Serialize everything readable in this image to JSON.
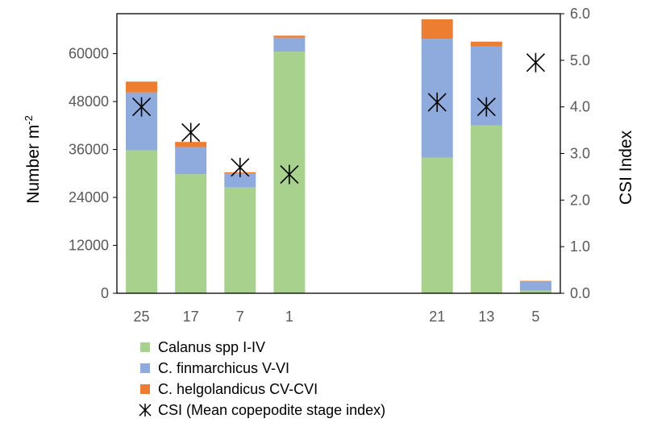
{
  "chart_data": {
    "type": "bar",
    "stacked": true,
    "categories": [
      "25",
      "17",
      "7",
      "1",
      "",
      "",
      "21",
      "13",
      "5"
    ],
    "series": [
      {
        "name": "Calanus spp I-IV",
        "color": "#a9d18e",
        "values": [
          35800,
          29800,
          26500,
          60500,
          null,
          null,
          34000,
          42000,
          700
        ]
      },
      {
        "name": "C. finmarchicus V-VI",
        "color": "#8faadc",
        "values": [
          14500,
          6800,
          3500,
          3500,
          null,
          null,
          29700,
          19800,
          2200
        ]
      },
      {
        "name": "C. helgolandicus CV-CVI",
        "color": "#ed7d31",
        "values": [
          2700,
          1300,
          300,
          500,
          null,
          null,
          4900,
          1200,
          200
        ]
      }
    ],
    "csi": {
      "name": "CSI (Mean copepodite stage index)",
      "marker": "asterisk",
      "values": [
        4.0,
        3.45,
        2.7,
        2.55,
        null,
        null,
        4.1,
        4.0,
        4.95
      ]
    },
    "ylabel_prefix": "Number m",
    "ylabel_sup": "-2",
    "y2label": "CSI Index",
    "ylim": [
      0,
      70000
    ],
    "y2lim": [
      0,
      6.0
    ],
    "yticks": [
      0,
      12000,
      24000,
      36000,
      48000,
      60000
    ],
    "y2ticks": [
      "0.0",
      "1.0",
      "2.0",
      "3.0",
      "4.0",
      "5.0",
      "6.0"
    ],
    "legend_position": "bottom",
    "grid": false
  }
}
